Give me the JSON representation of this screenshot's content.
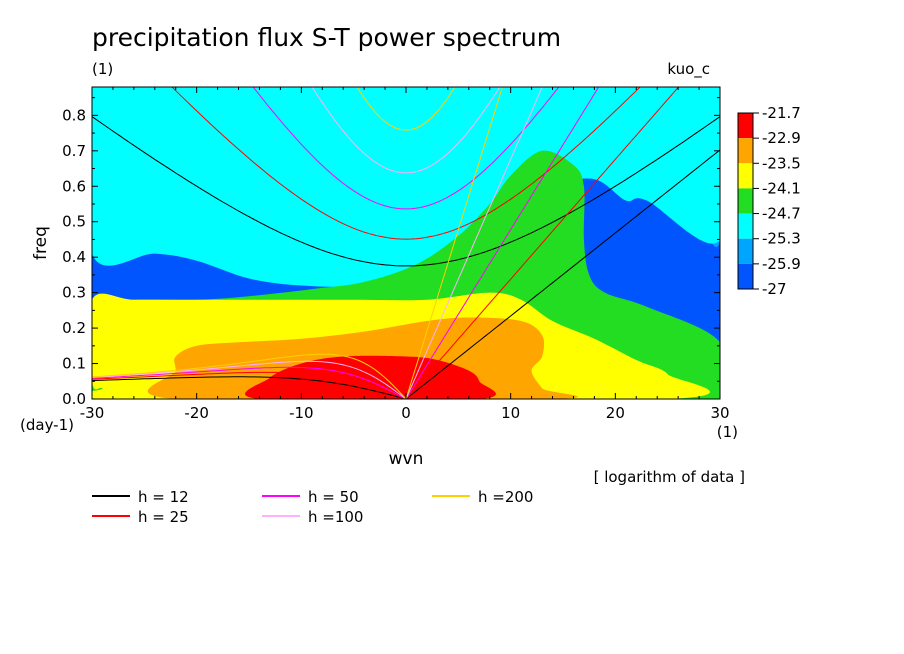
{
  "chart_data": {
    "type": "heatmap",
    "title": "precipitation flux S-T power spectrum",
    "title_units": "(1)",
    "run_label": "kuo_c",
    "xlabel": "wvn",
    "ylabel": "freq",
    "x_units": "(1)",
    "y_units": "(day-1)",
    "note": "[ logarithm of data ]",
    "xlim": [
      -30,
      30
    ],
    "ylim": [
      0.0,
      0.88
    ],
    "xticks": [
      -30,
      -20,
      -10,
      0,
      10,
      20,
      30
    ],
    "xtick_labels": [
      "-30",
      "-20",
      "-10",
      "0",
      "10",
      "20",
      "30"
    ],
    "yticks": [
      0.0,
      0.1,
      0.2,
      0.3,
      0.4,
      0.5,
      0.6,
      0.7,
      0.8
    ],
    "ytick_labels": [
      "0.0",
      "0.1",
      "0.2",
      "0.3",
      "0.4",
      "0.5",
      "0.6",
      "0.7",
      "0.8"
    ],
    "colorbar": {
      "labels": [
        "-21.7",
        "-22.9",
        "-23.5",
        "-24.1",
        "-24.7",
        "-25.3",
        "-25.9",
        "-27"
      ],
      "colors": [
        "#ff0000",
        "#ffa500",
        "#ffff00",
        "#22dd22",
        "#00ffff",
        "#00a5ff",
        "#0055ff"
      ]
    },
    "fill_regions": [
      {
        "level": "-27",
        "color": "#0055ff",
        "outline": [
          [
            -30,
            0.88
          ],
          [
            -30,
            0.77
          ],
          [
            -25,
            0.82
          ],
          [
            -22,
            0.82
          ],
          [
            -19,
            0.88
          ]
        ]
      },
      {
        "level": "-25.9",
        "color": "#00a5ff",
        "outline": [
          [
            -30,
            0.88
          ],
          [
            -30,
            0.53
          ],
          [
            -24,
            0.53
          ],
          [
            -15,
            0.56
          ],
          [
            -6,
            0.6
          ],
          [
            0,
            0.62
          ],
          [
            5,
            0.64
          ],
          [
            10,
            0.66
          ],
          [
            15,
            0.69
          ],
          [
            21,
            0.71
          ],
          [
            23,
            0.7
          ],
          [
            24,
            0.63
          ],
          [
            26,
            0.56
          ],
          [
            28,
            0.5
          ],
          [
            30,
            0.45
          ],
          [
            30,
            0.88
          ]
        ]
      },
      {
        "level": "-25.3",
        "color": "#00ffff",
        "outline": [
          [
            -30,
            0.88
          ],
          [
            -30,
            0.41
          ],
          [
            -24,
            0.41
          ],
          [
            -20,
            0.39
          ],
          [
            -15,
            0.34
          ],
          [
            -10,
            0.32
          ],
          [
            -4,
            0.32
          ],
          [
            1,
            0.36
          ],
          [
            5,
            0.44
          ],
          [
            10,
            0.54
          ],
          [
            14,
            0.6
          ],
          [
            18,
            0.62
          ],
          [
            21,
            0.56
          ],
          [
            23,
            0.56
          ],
          [
            30,
            0.45
          ],
          [
            30,
            0.88
          ]
        ]
      },
      {
        "level": "-24.7",
        "color": "#22dd22",
        "outline": [
          [
            -30,
            0.27
          ],
          [
            -26,
            0.28
          ],
          [
            -20,
            0.28
          ],
          [
            -15,
            0.29
          ],
          [
            -9,
            0.31
          ],
          [
            -4,
            0.33
          ],
          [
            1,
            0.38
          ],
          [
            5,
            0.46
          ],
          [
            8,
            0.55
          ],
          [
            10,
            0.63
          ],
          [
            13,
            0.7
          ],
          [
            16,
            0.66
          ],
          [
            17,
            0.6
          ],
          [
            17,
            0.45
          ],
          [
            17.5,
            0.35
          ],
          [
            19,
            0.3
          ],
          [
            23,
            0.26
          ],
          [
            30,
            0.16
          ],
          [
            30,
            0.0
          ],
          [
            -30,
            0.0
          ]
        ]
      },
      {
        "level": "-24.1",
        "color": "#ffff00",
        "outline": [
          [
            -30,
            0.28
          ],
          [
            -26,
            0.28
          ],
          [
            -20,
            0.28
          ],
          [
            -12,
            0.28
          ],
          [
            -5,
            0.28
          ],
          [
            2,
            0.28
          ],
          [
            8,
            0.3
          ],
          [
            11,
            0.28
          ],
          [
            14,
            0.22
          ],
          [
            18,
            0.17
          ],
          [
            22,
            0.11
          ],
          [
            25,
            0.07
          ],
          [
            25,
            0.0
          ],
          [
            -28,
            0.0
          ],
          [
            -29,
            0.03
          ],
          [
            -30,
            0.05
          ]
        ]
      },
      {
        "level": "-23.5",
        "color": "#ffa500",
        "outline": [
          [
            -22,
            0.0
          ],
          [
            -22,
            0.08
          ],
          [
            -22,
            0.12
          ],
          [
            -20,
            0.15
          ],
          [
            -16,
            0.16
          ],
          [
            -10,
            0.17
          ],
          [
            -4,
            0.19
          ],
          [
            2,
            0.22
          ],
          [
            6,
            0.23
          ],
          [
            11,
            0.22
          ],
          [
            13,
            0.18
          ],
          [
            13,
            0.12
          ],
          [
            12,
            0.08
          ],
          [
            13,
            0.03
          ],
          [
            14,
            0.0
          ]
        ]
      },
      {
        "level": "-22.9",
        "color": "#ff0000",
        "outline": [
          [
            -14,
            0.0
          ],
          [
            -13,
            0.06
          ],
          [
            -10,
            0.1
          ],
          [
            -6,
            0.12
          ],
          [
            0,
            0.12
          ],
          [
            3,
            0.11
          ],
          [
            6,
            0.08
          ],
          [
            7,
            0.05
          ],
          [
            7,
            0.0
          ]
        ]
      }
    ],
    "series": [
      {
        "name": "h = 12",
        "h": 12,
        "color": "#000000"
      },
      {
        "name": "h = 25",
        "h": 25,
        "color": "#ff0000"
      },
      {
        "name": "h = 50",
        "h": 50,
        "color": "#ff00ff"
      },
      {
        "name": "h =100",
        "h": 100,
        "color": "#ffb0ff"
      },
      {
        "name": "h =200",
        "h": 200,
        "color": "#ffd000"
      }
    ],
    "grid": false,
    "legend_position": "bottom-left"
  }
}
